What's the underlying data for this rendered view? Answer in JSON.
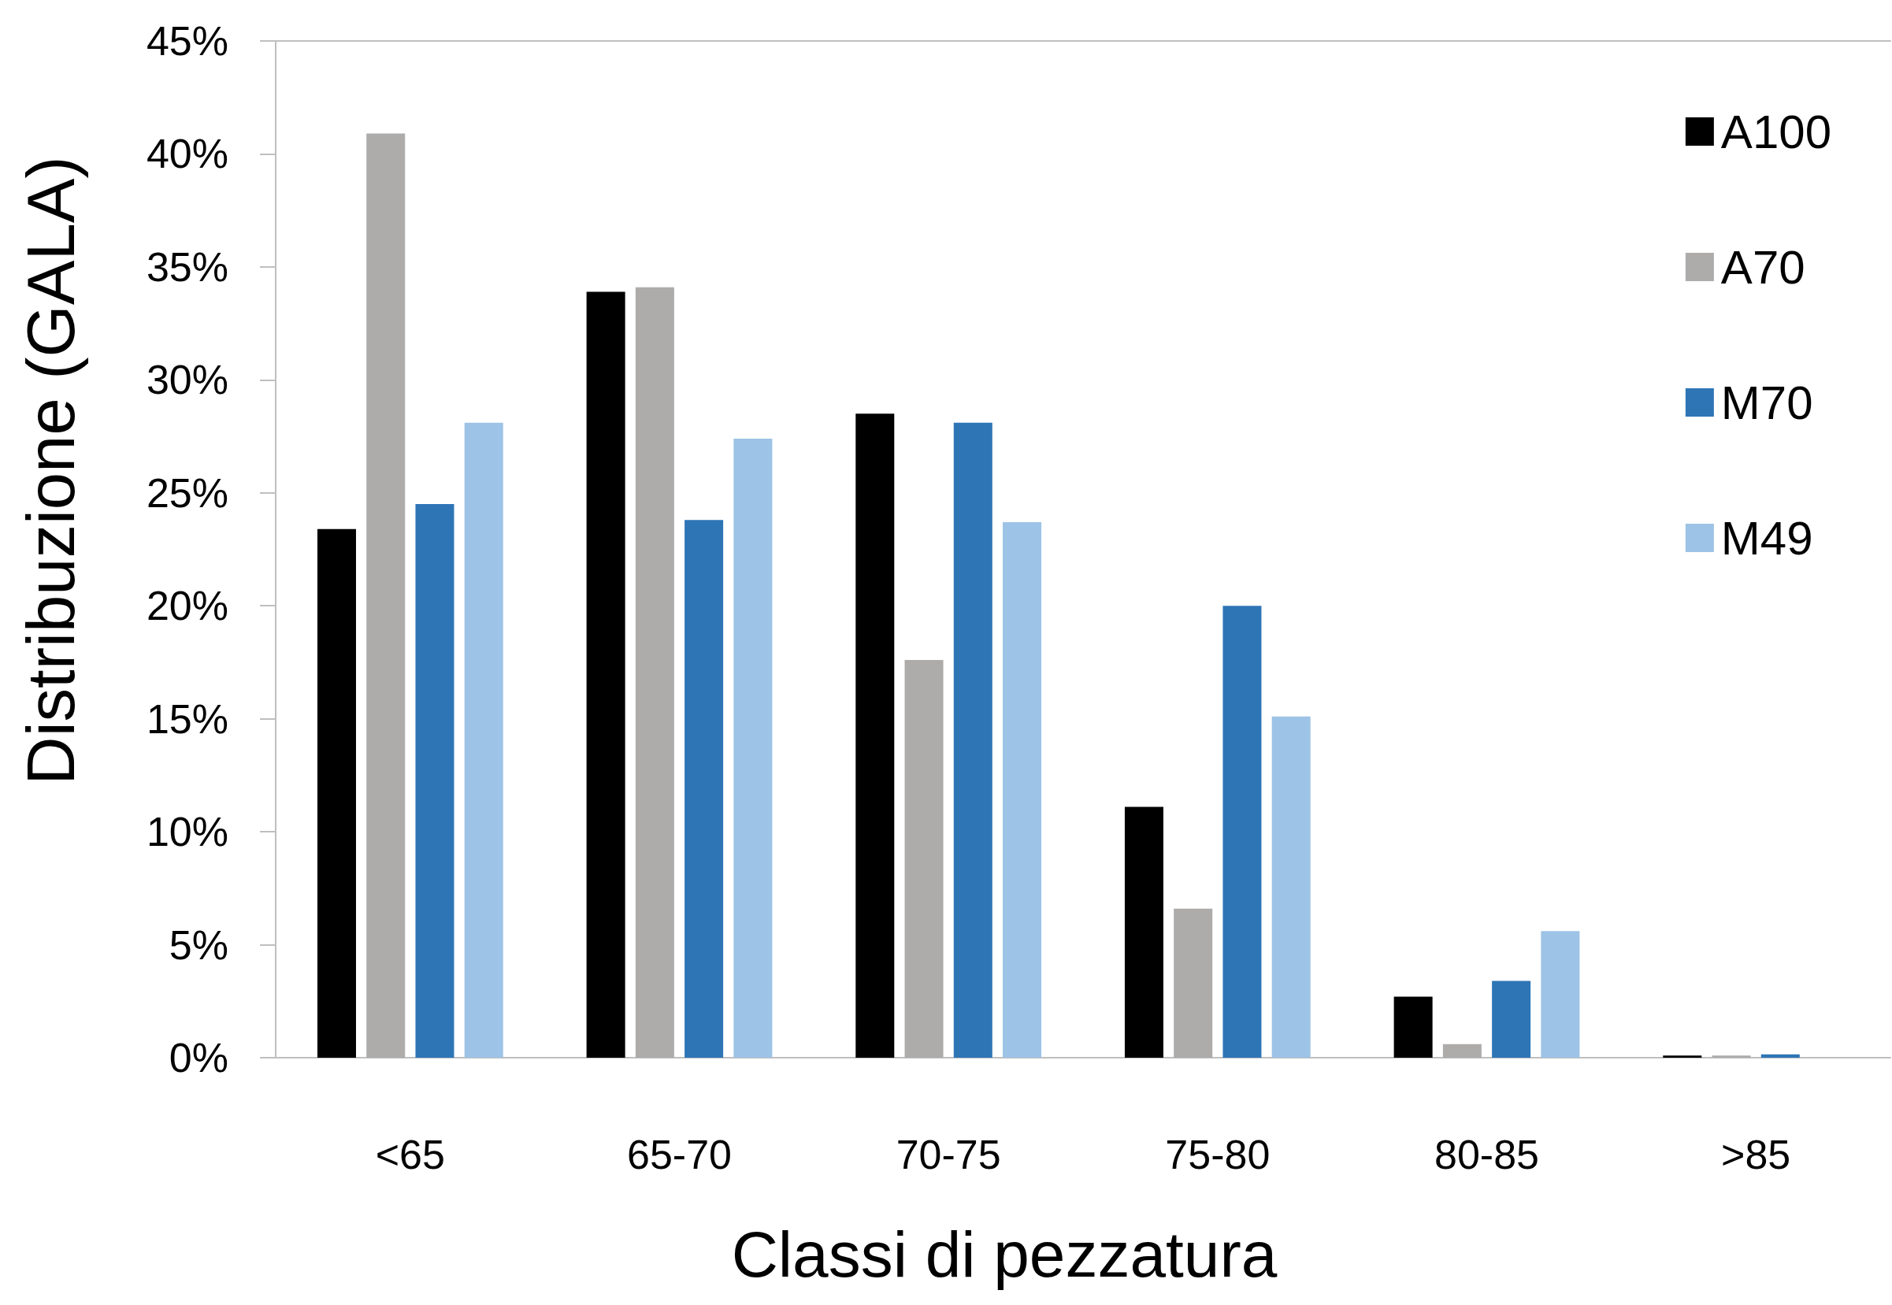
{
  "chart_data": {
    "type": "bar",
    "xlabel": "Classi di pezzatura",
    "ylabel": "Distribuzione (GALA)",
    "categories": [
      "<65",
      "65-70",
      "70-75",
      "75-80",
      "80-85",
      ">85"
    ],
    "series": [
      {
        "name": "A100",
        "color": "#000000",
        "values": [
          23.4,
          33.9,
          28.5,
          11.1,
          2.7,
          0.1
        ]
      },
      {
        "name": "A70",
        "color": "#aeabab",
        "values": [
          40.9,
          34.1,
          17.6,
          6.6,
          0.6,
          0.1
        ]
      },
      {
        "name": "M70",
        "color": "#2e75b6",
        "values": [
          24.5,
          23.8,
          28.1,
          20.0,
          3.4,
          0.15
        ]
      },
      {
        "name": "M49",
        "color": "#9dc3e6",
        "values": [
          28.1,
          27.4,
          23.7,
          15.1,
          5.6,
          null
        ]
      }
    ],
    "ylim": [
      0,
      45
    ],
    "yticks": [
      {
        "value": 0,
        "label": "0%"
      },
      {
        "value": 5,
        "label": "5%"
      },
      {
        "value": 10,
        "label": "10%"
      },
      {
        "value": 15,
        "label": "15%"
      },
      {
        "value": 20,
        "label": "20%"
      },
      {
        "value": 25,
        "label": "25%"
      },
      {
        "value": 30,
        "label": "30%"
      },
      {
        "value": 35,
        "label": "35%"
      },
      {
        "value": 40,
        "label": "40%"
      },
      {
        "value": 45,
        "label": "45%"
      }
    ],
    "grid": false,
    "legend": "top right"
  }
}
